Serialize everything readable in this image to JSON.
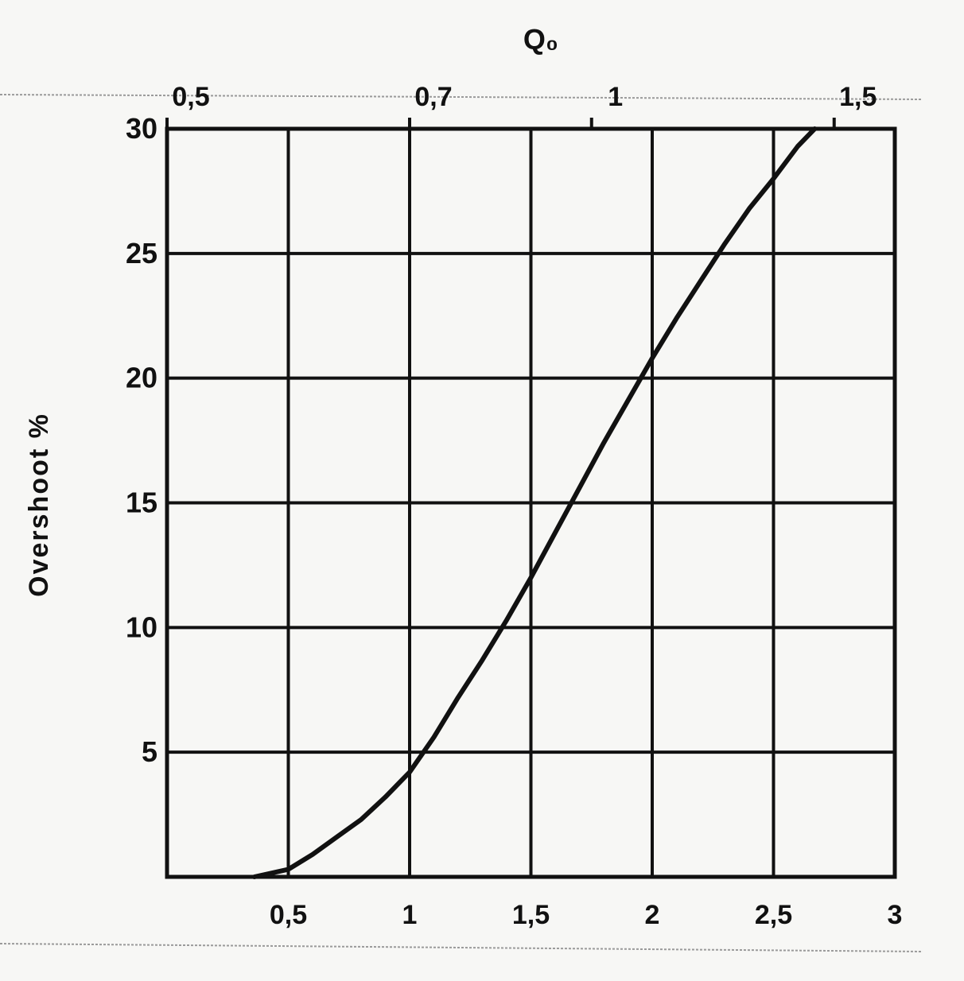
{
  "chart_data": {
    "type": "line",
    "title": "",
    "ylabel": "Overshoot %",
    "xlabel": "",
    "top_axis_label": "Q₀",
    "xlim": [
      0,
      3
    ],
    "ylim": [
      0,
      30
    ],
    "grid": true,
    "x_tick_values": [
      0.5,
      1,
      1.5,
      2,
      2.5,
      3
    ],
    "x_tick_labels": [
      "0,5",
      "1",
      "1,5",
      "2",
      "2,5",
      "3"
    ],
    "y_tick_values": [
      5,
      10,
      15,
      20,
      25,
      30
    ],
    "y_tick_labels": [
      "5",
      "10",
      "15",
      "20",
      "25",
      "30"
    ],
    "top_ticks": [
      {
        "label": "0,5",
        "at_bottom_x": 0.0
      },
      {
        "label": "0,7",
        "at_bottom_x": 1.0
      },
      {
        "label": "1",
        "at_bottom_x": 1.75
      },
      {
        "label": "1,5",
        "at_bottom_x": 2.75
      }
    ],
    "series": [
      {
        "x": [
          0.36,
          0.5,
          0.6,
          0.7,
          0.8,
          0.9,
          1.0,
          1.1,
          1.2,
          1.3,
          1.4,
          1.5,
          1.6,
          1.7,
          1.8,
          1.9,
          2.0,
          2.1,
          2.2,
          2.3,
          2.4,
          2.5,
          2.6,
          2.67
        ],
        "y": [
          0,
          0.3,
          0.9,
          1.6,
          2.3,
          3.2,
          4.2,
          5.6,
          7.2,
          8.7,
          10.3,
          12.0,
          13.8,
          15.6,
          17.4,
          19.1,
          20.8,
          22.4,
          23.9,
          25.4,
          26.8,
          28.0,
          29.3,
          30.0
        ],
        "color": "#111111"
      }
    ]
  }
}
